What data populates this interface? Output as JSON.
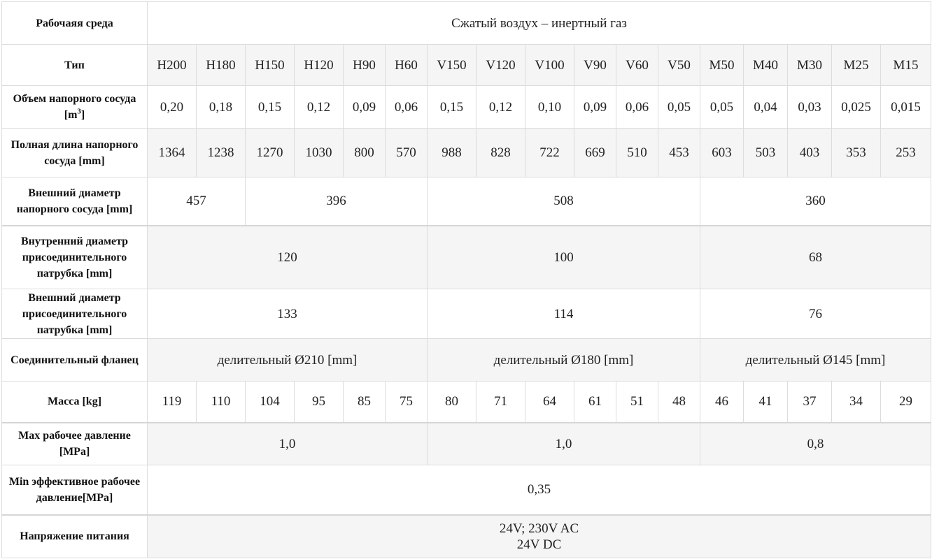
{
  "rows": {
    "medium": {
      "header": "Рабочаяя среда",
      "value": "Сжатый воздух – инертный газ"
    },
    "type": {
      "header": "Тип",
      "values": [
        "H200",
        "H180",
        "H150",
        "H120",
        "H90",
        "H60",
        "V150",
        "V120",
        "V100",
        "V90",
        "V60",
        "V50",
        "M50",
        "M40",
        "M30",
        "M25",
        "M15"
      ]
    },
    "volume": {
      "header_pre": "Объем напорного сосуда [m",
      "header_sup": "3",
      "header_post": "]",
      "values": [
        "0,20",
        "0,18",
        "0,15",
        "0,12",
        "0,09",
        "0,06",
        "0,15",
        "0,12",
        "0,10",
        "0,09",
        "0,06",
        "0,05",
        "0,05",
        "0,04",
        "0,03",
        "0,025",
        "0,015"
      ]
    },
    "length": {
      "header": "Полная длина напорного сосуда [mm]",
      "values": [
        "1364",
        "1238",
        "1270",
        "1030",
        "800",
        "570",
        "988",
        "828",
        "722",
        "669",
        "510",
        "453",
        "603",
        "503",
        "403",
        "353",
        "253"
      ]
    },
    "outer_diameter": {
      "header": "Внешний диаметр напорного сосуда [mm]",
      "values": [
        "457",
        "396",
        "508",
        "360"
      ]
    },
    "inner_nozzle": {
      "header": "Внутренний диаметр присоединительного патрубка [mm]",
      "values": [
        "120",
        "100",
        "68"
      ]
    },
    "outer_nozzle": {
      "header": "Внешний  диаметр присоединительного патрубка  [mm]",
      "values": [
        "133",
        "114",
        "76"
      ]
    },
    "flange": {
      "header": "Соединительный фланец",
      "values": [
        "делительный Ø210 [mm]",
        "делительный Ø180 [mm]",
        "делительный Ø145 [mm]"
      ]
    },
    "mass": {
      "header": "Масса [kg]",
      "values": [
        "119",
        "110",
        "104",
        "95",
        "85",
        "75",
        "80",
        "71",
        "64",
        "61",
        "51",
        "48",
        "46",
        "41",
        "37",
        "34",
        "29"
      ]
    },
    "max_pressure": {
      "header": "Max рабочее давление [MPa]",
      "values": [
        "1,0",
        "1,0",
        "0,8"
      ]
    },
    "min_pressure": {
      "header": "Min эффективное рабочее давление[MPa]",
      "value": "0,35"
    },
    "voltage": {
      "header": "Напряжение питания",
      "value_line1": "24V; 230V AC",
      "value_line2": "24V DC"
    }
  }
}
